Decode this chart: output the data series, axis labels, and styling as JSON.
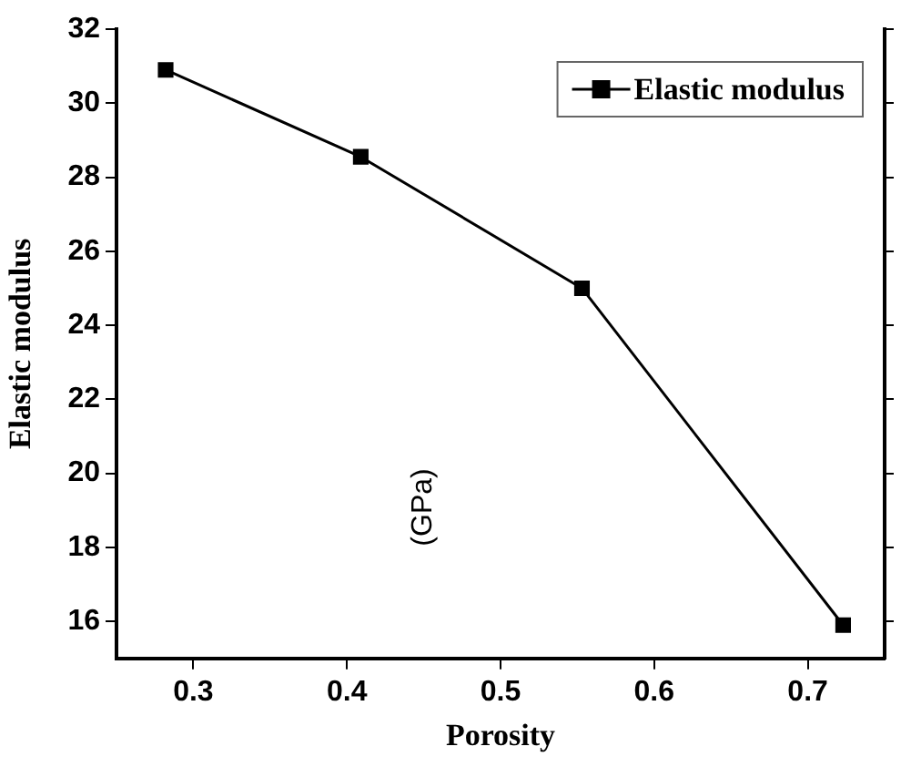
{
  "chart_data": {
    "type": "line",
    "xlabel": "Porosity",
    "ylabel": "Elastic modulus",
    "annotations": [
      "(GPa)"
    ],
    "x": [
      0.282,
      0.409,
      0.553,
      0.723
    ],
    "series": [
      {
        "name": "Elastic modulus",
        "color": "#000000",
        "values": [
          30.9,
          28.55,
          25.0,
          15.9
        ]
      }
    ],
    "xlim": [
      0.25,
      0.75
    ],
    "xticks": [
      0.3,
      0.4,
      0.5,
      0.6,
      0.7
    ],
    "ylim": [
      15,
      32
    ],
    "yticks": [
      16,
      18,
      20,
      22,
      24,
      26,
      28,
      30,
      32
    ],
    "marker": "square",
    "line_style": "solid",
    "legend": "top right",
    "grid": false
  }
}
